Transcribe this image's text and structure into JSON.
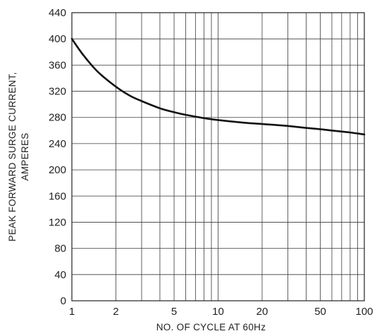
{
  "chart_data": {
    "type": "line",
    "title": "",
    "xlabel": "NO. OF CYCLE AT 60Hz",
    "ylabel_lines": [
      "PEAK FORWARD SURGE CURRENT,",
      "AMPERES"
    ],
    "x_scale": "log",
    "xlim": [
      1,
      100
    ],
    "ylim": [
      0,
      440
    ],
    "x_ticks": [
      1,
      2,
      5,
      10,
      20,
      50,
      100
    ],
    "x_tick_labels": [
      "1",
      "2",
      "5",
      "10",
      "20",
      "50",
      "100"
    ],
    "x_minor_grid": [
      3,
      4,
      6,
      7,
      8,
      9,
      30,
      40,
      60,
      70,
      80,
      90
    ],
    "y_ticks": [
      0,
      40,
      80,
      120,
      160,
      200,
      240,
      280,
      320,
      360,
      400,
      440
    ],
    "y_tick_labels": [
      "0",
      "40",
      "80",
      "120",
      "160",
      "200",
      "240",
      "280",
      "320",
      "360",
      "400",
      "440"
    ],
    "grid": true,
    "series": [
      {
        "x": [
          1,
          1.2,
          1.5,
          2,
          2.5,
          3,
          4,
          5,
          6,
          8,
          10,
          15,
          20,
          30,
          40,
          50,
          60,
          80,
          100
        ],
        "y": [
          400,
          375,
          350,
          327,
          313,
          305,
          294,
          288,
          284,
          279,
          276,
          272,
          270,
          267,
          264,
          262,
          260,
          257,
          254
        ]
      }
    ],
    "colors": {
      "line": "#111111",
      "grid": "#3a3a3a",
      "text": "#222222"
    }
  }
}
